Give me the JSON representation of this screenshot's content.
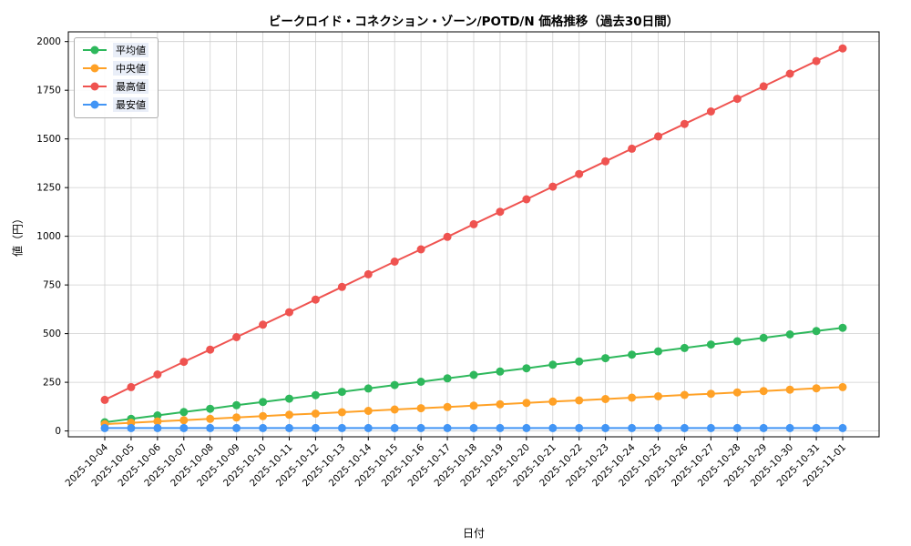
{
  "figure": {
    "title": "ビークロイド・コネクション・ゾーン/POTD/N 価格推移（過去30日間）",
    "xlabel": "日付",
    "ylabel": "値（円）"
  },
  "chart_data": {
    "type": "line",
    "title": "ビークロイド・コネクション・ゾーン/POTD/N 価格推移（過去30日間）",
    "xlabel": "日付",
    "ylabel": "値（円）",
    "ylim": [
      -30,
      2050
    ],
    "yticks": [
      0,
      250,
      500,
      750,
      1000,
      1250,
      1500,
      1750,
      2000
    ],
    "grid": true,
    "legend_position": "upper left",
    "categories": [
      "2025-10-04",
      "2025-10-05",
      "2025-10-06",
      "2025-10-07",
      "2025-10-08",
      "2025-10-09",
      "2025-10-10",
      "2025-10-11",
      "2025-10-12",
      "2025-10-13",
      "2025-10-14",
      "2025-10-15",
      "2025-10-16",
      "2025-10-17",
      "2025-10-18",
      "2025-10-19",
      "2025-10-20",
      "2025-10-21",
      "2025-10-22",
      "2025-10-23",
      "2025-10-24",
      "2025-10-25",
      "2025-10-26",
      "2025-10-27",
      "2025-10-28",
      "2025-10-29",
      "2025-10-30",
      "2025-10-31",
      "2025-11-01"
    ],
    "series": [
      {
        "name": "平均値",
        "color": "#2eb85c",
        "values": [
          45,
          62,
          80,
          97,
          114,
          132,
          149,
          166,
          184,
          201,
          218,
          236,
          253,
          270,
          288,
          305,
          322,
          340,
          357,
          374,
          392,
          409,
          426,
          444,
          461,
          478,
          496,
          513,
          530
        ]
      },
      {
        "name": "中央値",
        "color": "#ffa126",
        "values": [
          35,
          42,
          49,
          55,
          62,
          69,
          76,
          83,
          89,
          96,
          103,
          110,
          117,
          123,
          130,
          137,
          144,
          151,
          157,
          164,
          171,
          178,
          185,
          191,
          198,
          205,
          212,
          219,
          225
        ]
      },
      {
        "name": "最高値",
        "color": "#ef5350",
        "values": [
          160,
          225,
          290,
          355,
          418,
          482,
          546,
          610,
          675,
          740,
          805,
          870,
          933,
          997,
          1062,
          1126,
          1190,
          1255,
          1320,
          1385,
          1450,
          1513,
          1577,
          1641,
          1706,
          1770,
          1835,
          1900,
          1965
        ]
      },
      {
        "name": "最安値",
        "color": "#4295f5",
        "values": [
          15,
          15,
          15,
          15,
          15,
          15,
          15,
          15,
          15,
          15,
          15,
          15,
          15,
          15,
          15,
          15,
          15,
          15,
          15,
          15,
          15,
          15,
          15,
          15,
          15,
          15,
          15,
          15,
          15
        ]
      }
    ]
  }
}
